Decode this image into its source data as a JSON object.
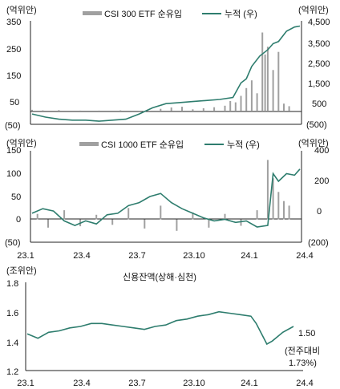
{
  "chart_data": [
    {
      "type": "bar+line",
      "title": "",
      "left_unit": "(억위안)",
      "right_unit": "(억위안)",
      "left_ticks": [
        "350",
        "250",
        "150",
        "50",
        "(50)"
      ],
      "left_tick_values": [
        350,
        250,
        150,
        50,
        -50
      ],
      "right_ticks": [
        "4,500",
        "3,500",
        "2,500",
        "1,500",
        "500",
        "(500)"
      ],
      "right_tick_values": [
        4500,
        3500,
        2500,
        1500,
        500,
        -500
      ],
      "ylim_left": [
        -50,
        350
      ],
      "ylim_right": [
        -500,
        4500
      ],
      "legend_bar": "CSI 300 ETF 순유입",
      "legend_line": "누적 (우)",
      "colors": {
        "bar": "#a0a0a0",
        "line": "#2e7d6e",
        "axis": "#222222"
      },
      "series": [
        {
          "name": "CSI 300 ETF 순유입",
          "kind": "bar",
          "axis": "left",
          "x": [
            0.0,
            0.04,
            0.1,
            0.18,
            0.25,
            0.33,
            0.4,
            0.48,
            0.52,
            0.56,
            0.6,
            0.64,
            0.68,
            0.72,
            0.74,
            0.76,
            0.78,
            0.8,
            0.82,
            0.84,
            0.86,
            0.87,
            0.88,
            0.9,
            0.92,
            0.94,
            0.96
          ],
          "values": [
            6,
            4,
            5,
            3,
            3,
            4,
            2,
            10,
            15,
            18,
            8,
            12,
            16,
            22,
            40,
            35,
            60,
            90,
            120,
            70,
            305,
            220,
            250,
            160,
            230,
            30,
            20
          ]
        },
        {
          "name": "누적 (우)",
          "kind": "line",
          "axis": "right",
          "x": [
            0.0,
            0.05,
            0.1,
            0.15,
            0.2,
            0.25,
            0.3,
            0.35,
            0.4,
            0.45,
            0.5,
            0.55,
            0.6,
            0.65,
            0.7,
            0.75,
            0.78,
            0.8,
            0.82,
            0.85,
            0.88,
            0.9,
            0.92,
            0.95,
            0.98,
            1.0
          ],
          "values": [
            0,
            -150,
            -250,
            -300,
            -300,
            -350,
            -300,
            -250,
            0,
            300,
            500,
            550,
            600,
            650,
            700,
            800,
            1500,
            1700,
            2300,
            2800,
            3100,
            3400,
            3500,
            4000,
            4200,
            4250
          ]
        }
      ]
    },
    {
      "type": "bar+line",
      "title": "",
      "left_unit": "(억위안)",
      "right_unit": "(억위안)",
      "left_ticks": [
        "150",
        "100",
        "50",
        "0",
        "(50)"
      ],
      "left_tick_values": [
        150,
        100,
        50,
        0,
        -50
      ],
      "right_ticks": [
        "400",
        "200",
        "0",
        "(200)"
      ],
      "right_tick_values": [
        400,
        200,
        0,
        -200
      ],
      "ylim_left": [
        -50,
        150
      ],
      "ylim_right": [
        -200,
        400
      ],
      "legend_bar": "CSI 1000 ETF 순유입",
      "legend_line": "누적 (우)",
      "colors": {
        "bar": "#a0a0a0",
        "line": "#2e7d6e",
        "axis": "#222222"
      },
      "series": [
        {
          "name": "CSI 1000 ETF 순유입",
          "kind": "bar",
          "axis": "left",
          "x": [
            0.02,
            0.06,
            0.12,
            0.18,
            0.24,
            0.3,
            0.36,
            0.42,
            0.48,
            0.54,
            0.6,
            0.66,
            0.72,
            0.78,
            0.84,
            0.88,
            0.9,
            0.92,
            0.94,
            0.96
          ],
          "values": [
            12,
            -18,
            20,
            -15,
            10,
            -12,
            25,
            -20,
            30,
            -25,
            15,
            -18,
            12,
            -14,
            20,
            130,
            90,
            60,
            40,
            30
          ]
        },
        {
          "name": "누적 (우)",
          "kind": "line",
          "axis": "right",
          "x": [
            0.0,
            0.04,
            0.08,
            0.12,
            0.16,
            0.2,
            0.24,
            0.28,
            0.32,
            0.36,
            0.4,
            0.44,
            0.48,
            0.52,
            0.56,
            0.6,
            0.64,
            0.68,
            0.72,
            0.76,
            0.8,
            0.84,
            0.88,
            0.9,
            0.92,
            0.95,
            0.98,
            1.0
          ],
          "values": [
            -10,
            20,
            5,
            -60,
            -90,
            -60,
            -80,
            -20,
            -10,
            40,
            60,
            100,
            120,
            60,
            20,
            -10,
            -40,
            -60,
            -50,
            -70,
            -60,
            -100,
            -90,
            250,
            200,
            250,
            240,
            280
          ]
        }
      ]
    },
    {
      "type": "line",
      "title": "신용잔액(상해·심천)",
      "left_unit": "(조위안)",
      "left_ticks": [
        "1.8",
        "1.6",
        "1.4",
        "1.2"
      ],
      "left_tick_values": [
        1.8,
        1.6,
        1.4,
        1.2
      ],
      "ylim": [
        1.2,
        1.8
      ],
      "x_ticks": [
        "23.1",
        "23.4",
        "23.7",
        "23.10",
        "24.1",
        "24.4"
      ],
      "annotation_value": "1.50",
      "annotation_note": "(전주대비",
      "annotation_pct": "1.73%)",
      "colors": {
        "line": "#2e7d6e",
        "axis": "#222222"
      },
      "series": [
        {
          "name": "",
          "kind": "line",
          "axis": "left",
          "x": [
            0.0,
            0.04,
            0.08,
            0.12,
            0.16,
            0.2,
            0.24,
            0.28,
            0.32,
            0.36,
            0.4,
            0.44,
            0.48,
            0.52,
            0.56,
            0.6,
            0.64,
            0.68,
            0.72,
            0.76,
            0.8,
            0.84,
            0.86,
            0.88,
            0.9,
            0.92,
            0.94,
            0.96,
            1.0
          ],
          "values": [
            1.45,
            1.42,
            1.46,
            1.47,
            1.49,
            1.5,
            1.52,
            1.52,
            1.51,
            1.5,
            1.49,
            1.48,
            1.5,
            1.51,
            1.54,
            1.55,
            1.57,
            1.58,
            1.6,
            1.59,
            1.58,
            1.57,
            1.52,
            1.45,
            1.38,
            1.4,
            1.43,
            1.46,
            1.5
          ]
        }
      ]
    }
  ]
}
